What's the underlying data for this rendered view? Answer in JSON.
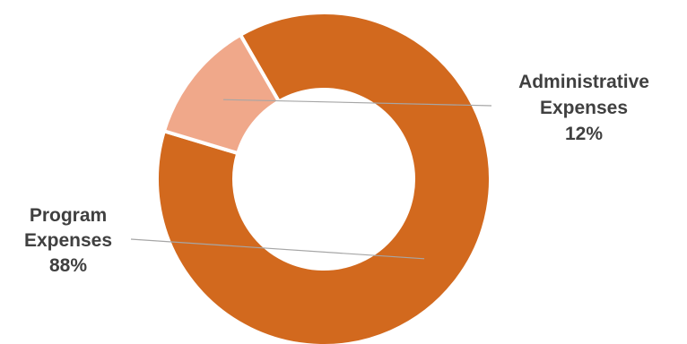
{
  "chart_data": {
    "type": "pie",
    "variant": "donut",
    "title": "",
    "categories": [
      "Program Expenses",
      "Administrative Expenses"
    ],
    "values": [
      88,
      12
    ],
    "value_labels": [
      "88%",
      "12%"
    ],
    "label_lines": [
      [
        "Program",
        "Expenses"
      ],
      [
        "Administrative",
        "Expenses"
      ]
    ],
    "colors": [
      "#d2691e",
      "#f0a88a"
    ],
    "slice_border_color": "#ffffff",
    "legend": "none"
  }
}
